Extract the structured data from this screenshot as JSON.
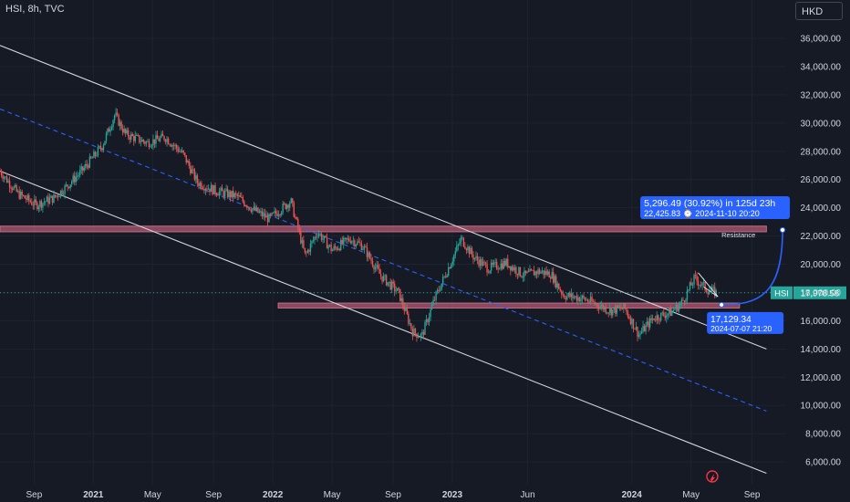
{
  "header": {
    "title": "HSI, 8h, TVC",
    "currency": "HKD"
  },
  "chart_data": {
    "type": "candlestick",
    "symbol": "HSI",
    "ylim": [
      5000,
      37000
    ],
    "y_ticks": [
      6000,
      8000,
      10000,
      12000,
      14000,
      16000,
      18000,
      20000,
      22000,
      24000,
      26000,
      28000,
      30000,
      32000,
      34000,
      36000
    ],
    "y_tick_labels": [
      "6,000.00",
      "8,000.00",
      "10,000.00",
      "12,000.00",
      "14,000.00",
      "16,000.00",
      "18,000.00",
      "20,000.00",
      "22,000.00",
      "24,000.00",
      "26,000.00",
      "28,000.00",
      "30,000.00",
      "32,000.00",
      "34,000.00",
      "36,000.00"
    ],
    "x_ticks": [
      {
        "label": "Sep",
        "bold": false,
        "t": 2020.67
      },
      {
        "label": "2021",
        "bold": true,
        "t": 2021.0
      },
      {
        "label": "May",
        "bold": false,
        "t": 2021.33
      },
      {
        "label": "Sep",
        "bold": false,
        "t": 2021.67
      },
      {
        "label": "2022",
        "bold": true,
        "t": 2022.0
      },
      {
        "label": "May",
        "bold": false,
        "t": 2022.33
      },
      {
        "label": "Sep",
        "bold": false,
        "t": 2022.67
      },
      {
        "label": "2023",
        "bold": true,
        "t": 2023.0
      },
      {
        "label": "Jun",
        "bold": false,
        "t": 2023.42
      },
      {
        "label": "2024",
        "bold": true,
        "t": 2024.0
      },
      {
        "label": "May",
        "bold": false,
        "t": 2024.33
      },
      {
        "label": "Sep",
        "bold": false,
        "t": 2024.67
      }
    ],
    "price_path": [
      [
        2020.48,
        26600
      ],
      [
        2020.58,
        25000
      ],
      [
        2020.68,
        24200
      ],
      [
        2020.78,
        24700
      ],
      [
        2020.85,
        25500
      ],
      [
        2020.95,
        26800
      ],
      [
        2021.05,
        28400
      ],
      [
        2021.12,
        30600
      ],
      [
        2021.18,
        29200
      ],
      [
        2021.3,
        28600
      ],
      [
        2021.4,
        29000
      ],
      [
        2021.5,
        27800
      ],
      [
        2021.58,
        25800
      ],
      [
        2021.68,
        25200
      ],
      [
        2021.8,
        24800
      ],
      [
        2021.9,
        23800
      ],
      [
        2021.98,
        23200
      ],
      [
        2022.1,
        24500
      ],
      [
        2022.18,
        20600
      ],
      [
        2022.25,
        22300
      ],
      [
        2022.33,
        21000
      ],
      [
        2022.43,
        21800
      ],
      [
        2022.5,
        21300
      ],
      [
        2022.6,
        19200
      ],
      [
        2022.7,
        18000
      ],
      [
        2022.78,
        15200
      ],
      [
        2022.83,
        14900
      ],
      [
        2022.9,
        17500
      ],
      [
        2022.98,
        19800
      ],
      [
        2023.05,
        21800
      ],
      [
        2023.12,
        20500
      ],
      [
        2023.2,
        19700
      ],
      [
        2023.3,
        20100
      ],
      [
        2023.4,
        19200
      ],
      [
        2023.48,
        19500
      ],
      [
        2023.55,
        19300
      ],
      [
        2023.62,
        17800
      ],
      [
        2023.72,
        17600
      ],
      [
        2023.8,
        17200
      ],
      [
        2023.88,
        16700
      ],
      [
        2023.96,
        16900
      ],
      [
        2024.04,
        15000
      ],
      [
        2024.12,
        16200
      ],
      [
        2024.22,
        16600
      ],
      [
        2024.28,
        17300
      ],
      [
        2024.35,
        19000
      ],
      [
        2024.42,
        18200
      ],
      [
        2024.47,
        17978
      ]
    ],
    "channel_lines": [
      {
        "name": "upper",
        "color": "#d1d4dc",
        "style": "solid",
        "points": [
          [
            2020.48,
            35500
          ],
          [
            2024.75,
            14000
          ]
        ]
      },
      {
        "name": "middle",
        "color": "#2962ff",
        "style": "dashed",
        "points": [
          [
            2020.48,
            31000
          ],
          [
            2024.75,
            9600
          ]
        ]
      },
      {
        "name": "lower",
        "color": "#d1d4dc",
        "style": "solid",
        "points": [
          [
            2020.48,
            26600
          ],
          [
            2024.75,
            5200
          ]
        ]
      }
    ],
    "zones": [
      {
        "name": "resistance",
        "label": "Resistance",
        "t0": 2020.48,
        "t1": 2024.75,
        "y0": 22300,
        "y1": 22700
      },
      {
        "name": "support",
        "t0": 2022.03,
        "t1": 2024.6,
        "y0": 16900,
        "y1": 17250
      }
    ],
    "projection": {
      "from": [
        2024.5,
        17129.34
      ],
      "to": [
        2024.84,
        22425.83
      ],
      "change": "5,296.49 (30.92%) in 125d 23h",
      "target": "22,425.83",
      "target_time": "2024-11-10  20:20",
      "start_price": "17,129.34",
      "start_time": "2024-07-07 21:20"
    },
    "last_price": {
      "label": "HSI",
      "value": 17978.58,
      "value_label": "17,978.58"
    }
  }
}
